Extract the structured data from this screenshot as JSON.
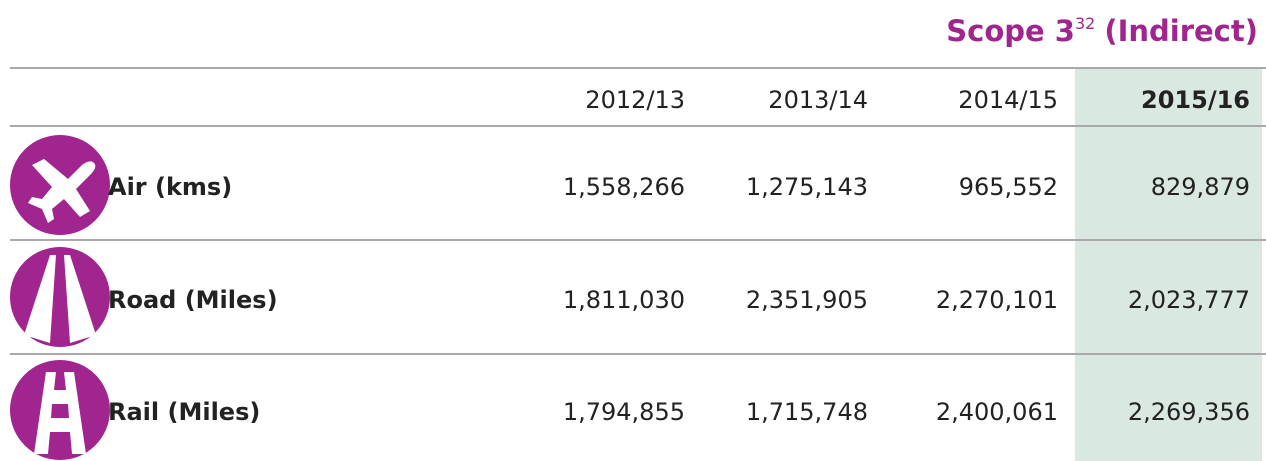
{
  "title": {
    "text": "Scope 3",
    "superscript": "32",
    "suffix": "(Indirect)"
  },
  "table": {
    "header": [
      "2012/13",
      "2013/14",
      "2014/15",
      "2015/16"
    ],
    "rows": [
      {
        "label": "Air (kms)",
        "values": [
          "1,558,266",
          "1,275,143",
          "965,552",
          "829,879"
        ]
      },
      {
        "label": "Road (Miles)",
        "values": [
          "1,811,030",
          "2,351,905",
          "2,270,101",
          "2,023,777"
        ]
      },
      {
        "label": "Rail (Miles)",
        "values": [
          "1,794,855",
          "1,715,748",
          "2,400,061",
          "2,269,356"
        ]
      }
    ]
  }
}
